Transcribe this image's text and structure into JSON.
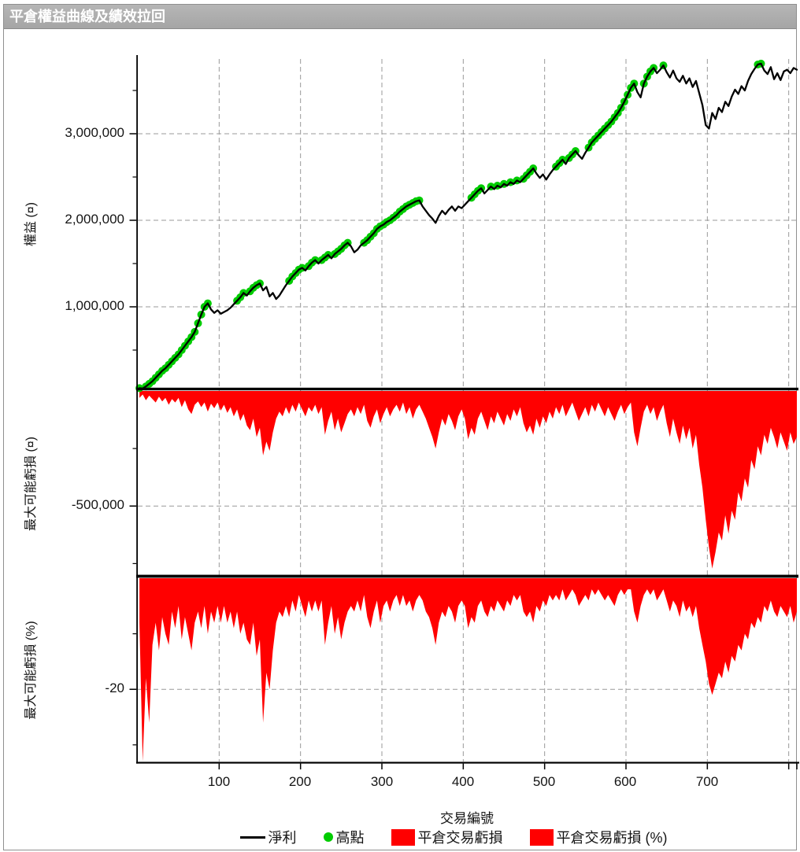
{
  "window": {
    "title": "平倉權益曲線及績效拉回"
  },
  "colors": {
    "titlebar_bg": "#ababab",
    "titlebar_text": "#ffffff",
    "equity_line": "#000000",
    "high_dot": "#00cc00",
    "loss_fill": "#ff0000",
    "grid": "#999999",
    "axis": "#000000"
  },
  "axes": {
    "x_title": "交易編號",
    "x_ticks": [
      "100",
      "200",
      "300",
      "400",
      "500",
      "600",
      "700"
    ],
    "x_tick_values": [
      100,
      200,
      300,
      400,
      500,
      600,
      700
    ],
    "x_grid_values": [
      100,
      200,
      300,
      400,
      500,
      600,
      700,
      800
    ],
    "panels": [
      {
        "id": "equity",
        "y_title": "權益 (¤)",
        "ticks": [
          {
            "label": "3,000,000",
            "value": 3000000
          },
          {
            "label": "2,000,000",
            "value": 2000000
          },
          {
            "label": "1,000,000",
            "value": 1000000
          }
        ],
        "ylim": [
          0,
          3820000
        ]
      },
      {
        "id": "drawdown",
        "y_title": "最大可能虧損 (¤)",
        "ticks": [
          {
            "label": "-500,000",
            "value": -500000
          }
        ],
        "ylim": [
          -800000,
          0
        ]
      },
      {
        "id": "drawdown_pct",
        "y_title": "最大可能虧損 (%)",
        "ticks": [
          {
            "label": "-20",
            "value": -20
          }
        ],
        "ylim": [
          -33,
          0
        ]
      }
    ]
  },
  "legend": [
    {
      "swatch": "line",
      "label": "淨利"
    },
    {
      "swatch": "dot",
      "label": "高點"
    },
    {
      "swatch": "box",
      "label": "平倉交易虧損"
    },
    {
      "swatch": "box",
      "label": "平倉交易虧損 (%)"
    }
  ],
  "chart_data": {
    "type": "composite-3panel",
    "x_label": "交易編號",
    "x_start": 2,
    "x_step": 4,
    "x_range": [
      0,
      810
    ],
    "high_points_rule": "green dot at every new running maximum of equity",
    "equity_unit": "millions ¤",
    "equity_m": [
      0.06,
      0.055,
      0.08,
      0.11,
      0.14,
      0.18,
      0.22,
      0.26,
      0.29,
      0.33,
      0.37,
      0.41,
      0.45,
      0.5,
      0.55,
      0.6,
      0.65,
      0.71,
      0.81,
      0.91,
      1.0,
      1.04,
      0.97,
      0.93,
      0.96,
      0.92,
      0.94,
      0.96,
      0.99,
      1.03,
      1.07,
      1.11,
      1.16,
      1.13,
      1.18,
      1.22,
      1.25,
      1.27,
      1.19,
      1.23,
      1.12,
      1.16,
      1.09,
      1.13,
      1.19,
      1.25,
      1.3,
      1.35,
      1.39,
      1.43,
      1.45,
      1.42,
      1.47,
      1.51,
      1.54,
      1.5,
      1.54,
      1.57,
      1.6,
      1.56,
      1.61,
      1.64,
      1.67,
      1.71,
      1.74,
      1.7,
      1.63,
      1.66,
      1.71,
      1.74,
      1.77,
      1.81,
      1.85,
      1.9,
      1.93,
      1.95,
      1.98,
      2.0,
      2.03,
      2.06,
      2.1,
      2.13,
      2.16,
      2.18,
      2.2,
      2.22,
      2.23,
      2.16,
      2.11,
      2.06,
      2.02,
      1.97,
      2.05,
      2.11,
      2.07,
      2.12,
      2.16,
      2.11,
      2.16,
      2.14,
      2.18,
      2.22,
      2.26,
      2.3,
      2.34,
      2.37,
      2.31,
      2.35,
      2.39,
      2.36,
      2.4,
      2.38,
      2.42,
      2.4,
      2.44,
      2.42,
      2.46,
      2.44,
      2.48,
      2.52,
      2.56,
      2.6,
      2.54,
      2.49,
      2.53,
      2.47,
      2.53,
      2.58,
      2.62,
      2.66,
      2.7,
      2.65,
      2.72,
      2.76,
      2.8,
      2.75,
      2.71,
      2.78,
      2.84,
      2.9,
      2.94,
      2.98,
      3.02,
      3.06,
      3.1,
      3.14,
      3.19,
      3.24,
      3.3,
      3.37,
      3.45,
      3.53,
      3.58,
      3.48,
      3.42,
      3.58,
      3.66,
      3.72,
      3.76,
      3.7,
      3.74,
      3.79,
      3.71,
      3.65,
      3.73,
      3.64,
      3.6,
      3.67,
      3.58,
      3.64,
      3.54,
      3.61,
      3.47,
      3.33,
      3.1,
      3.06,
      3.24,
      3.17,
      3.3,
      3.25,
      3.37,
      3.32,
      3.43,
      3.51,
      3.46,
      3.55,
      3.5,
      3.61,
      3.69,
      3.75,
      3.8,
      3.81,
      3.73,
      3.69,
      3.77,
      3.63,
      3.7,
      3.62,
      3.72,
      3.74,
      3.7,
      3.76,
      3.74
    ],
    "drawdown_unit": "thousands ¤",
    "drawdown_k": [
      -30,
      -15,
      -40,
      -20,
      -35,
      -50,
      -25,
      -45,
      -30,
      -60,
      -35,
      -50,
      -30,
      -70,
      -40,
      -80,
      -100,
      -60,
      -45,
      -70,
      -50,
      -90,
      -55,
      -75,
      -50,
      -85,
      -60,
      -95,
      -70,
      -110,
      -80,
      -130,
      -100,
      -150,
      -170,
      -120,
      -200,
      -160,
      -280,
      -220,
      -260,
      -180,
      -120,
      -90,
      -110,
      -70,
      -100,
      -60,
      -90,
      -50,
      -80,
      -110,
      -70,
      -90,
      -60,
      -100,
      -70,
      -190,
      -130,
      -90,
      -170,
      -120,
      -180,
      -140,
      -100,
      -80,
      -110,
      -70,
      -100,
      -60,
      -130,
      -160,
      -110,
      -80,
      -140,
      -100,
      -70,
      -110,
      -80,
      -60,
      -90,
      -50,
      -100,
      -70,
      -120,
      -80,
      -60,
      -90,
      -120,
      -160,
      -200,
      -250,
      -180,
      -120,
      -150,
      -100,
      -130,
      -170,
      -110,
      -80,
      -120,
      -210,
      -160,
      -190,
      -120,
      -90,
      -130,
      -170,
      -110,
      -140,
      -90,
      -120,
      -150,
      -100,
      -130,
      -80,
      -110,
      -70,
      -140,
      -180,
      -150,
      -190,
      -120,
      -160,
      -110,
      -140,
      -90,
      -120,
      -70,
      -100,
      -60,
      -110,
      -80,
      -50,
      -90,
      -130,
      -100,
      -70,
      -110,
      -60,
      -90,
      -50,
      -80,
      -110,
      -70,
      -100,
      -130,
      -90,
      -60,
      -100,
      -70,
      -50,
      -180,
      -240,
      -160,
      -90,
      -60,
      -100,
      -70,
      -130,
      -90,
      -60,
      -140,
      -200,
      -120,
      -180,
      -230,
      -150,
      -210,
      -160,
      -250,
      -190,
      -320,
      -420,
      -560,
      -680,
      -772,
      -700,
      -615,
      -650,
      -540,
      -620,
      -520,
      -560,
      -440,
      -480,
      -380,
      -420,
      -300,
      -340,
      -240,
      -280,
      -190,
      -230,
      -160,
      -200,
      -250,
      -180,
      -220,
      -260,
      -180,
      -230,
      -200
    ],
    "drawdown_pct": [
      -8,
      -33,
      -18,
      -26,
      -12,
      -8,
      -13,
      -7,
      -10,
      -12,
      -6,
      -9,
      -5,
      -11,
      -7,
      -10,
      -13,
      -8,
      -6,
      -9,
      -5,
      -10,
      -6,
      -8,
      -5,
      -8,
      -5,
      -8,
      -6,
      -9,
      -6,
      -10,
      -8,
      -11,
      -12,
      -8,
      -14,
      -11,
      -26,
      -17,
      -20,
      -13,
      -8,
      -6,
      -7,
      -5,
      -7,
      -4,
      -6,
      -3,
      -5,
      -7,
      -4,
      -6,
      -4,
      -6,
      -4,
      -12,
      -8,
      -5,
      -10,
      -7,
      -11,
      -8,
      -6,
      -5,
      -6,
      -4,
      -6,
      -3,
      -7,
      -9,
      -6,
      -4,
      -8,
      -5,
      -4,
      -6,
      -4,
      -3,
      -5,
      -3,
      -5,
      -4,
      -6,
      -4,
      -3,
      -4,
      -6,
      -7,
      -9,
      -12,
      -8,
      -6,
      -7,
      -5,
      -6,
      -8,
      -5,
      -4,
      -5,
      -9,
      -7,
      -8,
      -5,
      -4,
      -6,
      -7,
      -5,
      -6,
      -4,
      -5,
      -6,
      -4,
      -5,
      -3,
      -4,
      -3,
      -6,
      -7,
      -6,
      -8,
      -5,
      -6,
      -4,
      -5,
      -3,
      -4,
      -3,
      -4,
      -2,
      -4,
      -3,
      -2,
      -3,
      -5,
      -4,
      -3,
      -4,
      -2,
      -3,
      -2,
      -3,
      -4,
      -3,
      -4,
      -5,
      -3,
      -2,
      -3,
      -2,
      -2,
      -6,
      -8,
      -5,
      -3,
      -2,
      -3,
      -2,
      -4,
      -3,
      -2,
      -4,
      -6,
      -4,
      -5,
      -7,
      -4,
      -6,
      -5,
      -7,
      -5,
      -9,
      -12,
      -15,
      -19,
      -21,
      -19,
      -17,
      -18,
      -15,
      -17,
      -14,
      -15,
      -12,
      -13,
      -10,
      -11,
      -8,
      -9,
      -7,
      -8,
      -5,
      -6,
      -4,
      -6,
      -7,
      -5,
      -6,
      -7,
      -5,
      -8,
      -6
    ]
  }
}
